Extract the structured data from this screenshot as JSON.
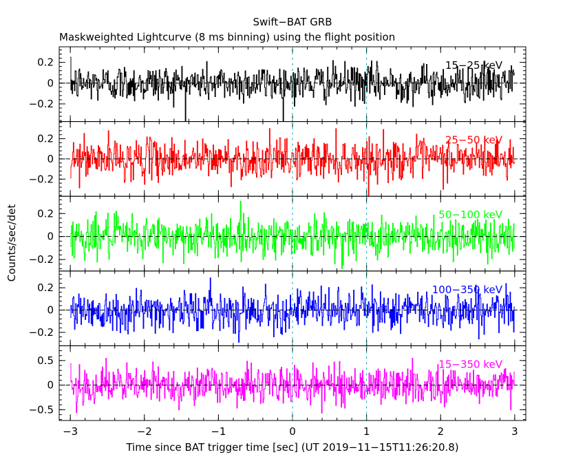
{
  "chart_data": {
    "type": "line",
    "title": "Swift−BAT GRB",
    "subtitle": "Maskweighted Lightcurve (8 ms binning) using the flight position",
    "xlabel": "Time since BAT trigger time [sec] (UT 2019−11−15T11:26:20.8)",
    "ylabel": "Counts/sec/det",
    "xlim": [
      -3.15,
      3.15
    ],
    "x_ticks": [
      -3,
      -2,
      -1,
      0,
      1,
      2,
      3
    ],
    "x_tick_labels": [
      "−3",
      "−2",
      "−1",
      "0",
      "1",
      "2",
      "3"
    ],
    "time_range": [
      -3.0,
      3.0
    ],
    "bin_size_s": 0.008,
    "markers": [
      0,
      1
    ],
    "panels": [
      {
        "name": "15−25 keV",
        "label": "15−25 keV",
        "color": "#000000",
        "ylim": [
          -0.37,
          0.35
        ],
        "yticks": [
          0.2,
          0,
          -0.2
        ],
        "ytick_labels": [
          "0.2",
          "0",
          "−0.2"
        ],
        "noise_sigma": 0.09
      },
      {
        "name": "25−50 keV",
        "label": "25−50 keV",
        "color": "#ff0000",
        "ylim": [
          -0.37,
          0.37
        ],
        "yticks": [
          0.2,
          0,
          -0.2
        ],
        "ytick_labels": [
          "0.2",
          "0",
          "−0.2"
        ],
        "noise_sigma": 0.1
      },
      {
        "name": "50−100 keV",
        "label": "50−100 keV",
        "color": "#00ff00",
        "ylim": [
          -0.3,
          0.35
        ],
        "yticks": [
          0.2,
          0,
          -0.2
        ],
        "ytick_labels": [
          "0.2",
          "0",
          "−0.2"
        ],
        "noise_sigma": 0.09
      },
      {
        "name": "100−350 keV",
        "label": "100−350 keV",
        "color": "#0000ff",
        "ylim": [
          -0.32,
          0.35
        ],
        "yticks": [
          0.2,
          0,
          -0.2
        ],
        "ytick_labels": [
          "0.2",
          "0",
          "−0.2"
        ],
        "noise_sigma": 0.09
      },
      {
        "name": "15−350 keV",
        "label": "15−350 keV",
        "color": "#ff00ff",
        "ylim": [
          -0.72,
          0.8
        ],
        "yticks": [
          0.5,
          0,
          -0.5
        ],
        "ytick_labels": [
          "0.5",
          "0",
          "−0.5"
        ],
        "noise_sigma": 0.19
      }
    ]
  }
}
